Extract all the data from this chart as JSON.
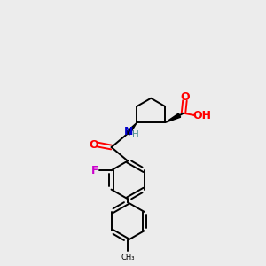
{
  "background_color": "#ececec",
  "bond_color": "#000000",
  "figsize": [
    3.0,
    3.0
  ],
  "dpi": 100,
  "colors": {
    "O": "#ff0000",
    "N": "#0000cc",
    "F": "#cc00cc",
    "C": "#000000",
    "H": "#4a9090"
  },
  "lw": 1.4,
  "r_hex": 0.72,
  "r_cp": 0.62
}
